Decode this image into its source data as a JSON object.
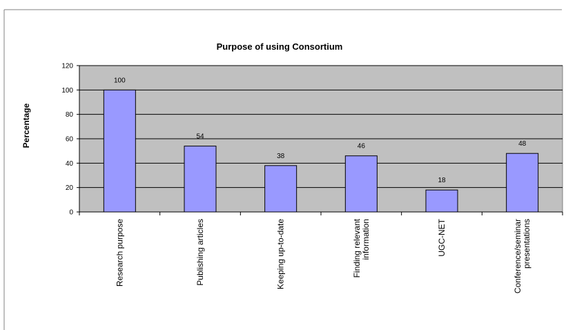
{
  "chart_data": {
    "type": "bar",
    "title": "Purpose of using Consortium",
    "ylabel": "Percentage",
    "xlabel": "",
    "categories": [
      [
        "Research purpose"
      ],
      [
        "Publishing articles"
      ],
      [
        "Keeping up-to-date"
      ],
      [
        "Finding relevant",
        "information"
      ],
      [
        "UGC-NET"
      ],
      [
        "Conference/seminar",
        "presentations"
      ]
    ],
    "values": [
      100,
      54,
      38,
      46,
      18,
      48
    ],
    "ylim": [
      0,
      120
    ],
    "yticks": [
      0,
      20,
      40,
      60,
      80,
      100,
      120
    ],
    "grid": true,
    "legend": "none",
    "colors": {
      "bar_fill": "#9999ff",
      "bar_stroke": "#000000",
      "plot_background": "#c0c0c0",
      "gridline": "#000000"
    }
  }
}
